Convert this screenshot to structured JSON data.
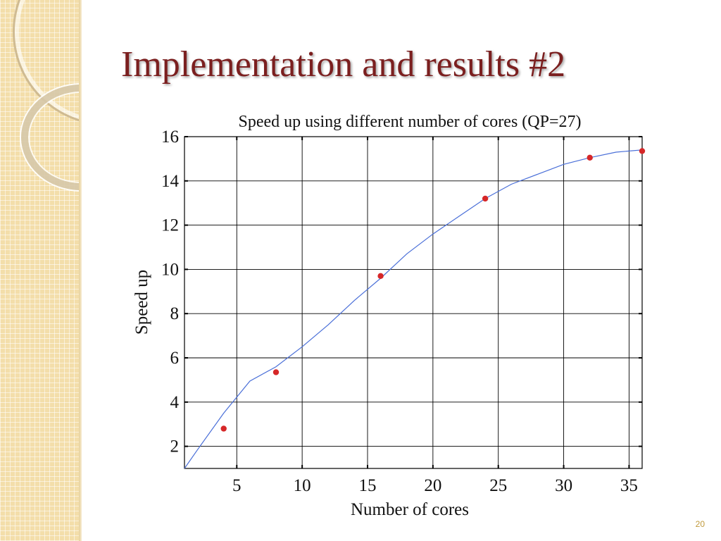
{
  "slide": {
    "title": "Implementation and results #2",
    "page_number": "20"
  },
  "chart_data": {
    "type": "scatter",
    "title": "Speed up using different number of cores (QP=27)",
    "xlabel": "Number of cores",
    "ylabel": "Speed up",
    "xlim": [
      1,
      36
    ],
    "ylim": [
      1,
      16
    ],
    "xticks": [
      5,
      10,
      15,
      20,
      25,
      30,
      35
    ],
    "yticks": [
      2,
      4,
      6,
      8,
      10,
      12,
      14,
      16
    ],
    "grid": true,
    "points": {
      "x": [
        4,
        8,
        16,
        24,
        32,
        36
      ],
      "y": [
        2.8,
        5.35,
        9.7,
        13.2,
        15.05,
        15.35
      ],
      "color": "#d62728"
    },
    "fit_curve": {
      "x": [
        1,
        2,
        4,
        6,
        8,
        10,
        12,
        14,
        16,
        18,
        20,
        22,
        24,
        26,
        28,
        30,
        32,
        34,
        35,
        36
      ],
      "y": [
        1.0,
        1.85,
        3.5,
        4.95,
        5.6,
        6.5,
        7.5,
        8.6,
        9.6,
        10.7,
        11.6,
        12.4,
        13.2,
        13.85,
        14.3,
        14.75,
        15.05,
        15.3,
        15.35,
        15.4
      ],
      "color": "#4a6fd8"
    }
  }
}
